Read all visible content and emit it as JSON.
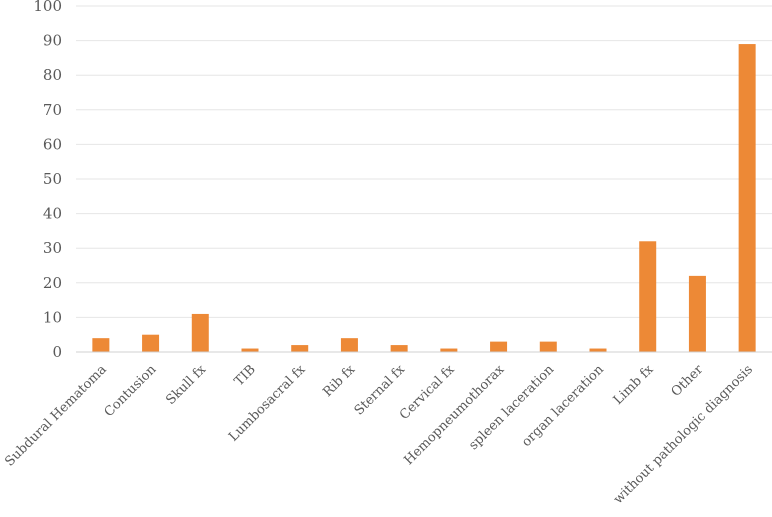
{
  "chart_data": {
    "type": "bar",
    "title": "",
    "xlabel": "",
    "ylabel": "",
    "ylim": [
      0,
      100
    ],
    "yticks": [
      0,
      10,
      20,
      30,
      40,
      50,
      60,
      70,
      80,
      90,
      100
    ],
    "grid": true,
    "legend": "none",
    "color": "#ed8936",
    "categories": [
      "Subdural Hematoma",
      "Contusion",
      "Skull fx",
      "TIB",
      "Lumbosacral fx",
      "Rib fx",
      "Sternal fx",
      "Cervical fx",
      "Hemopneumothorax",
      "spleen laceration",
      "organ laceration",
      "Limb fx",
      "Other",
      "without pathologic diagnosis"
    ],
    "values": [
      4,
      5,
      11,
      1,
      2,
      4,
      2,
      1,
      3,
      3,
      1,
      32,
      22,
      89
    ]
  }
}
